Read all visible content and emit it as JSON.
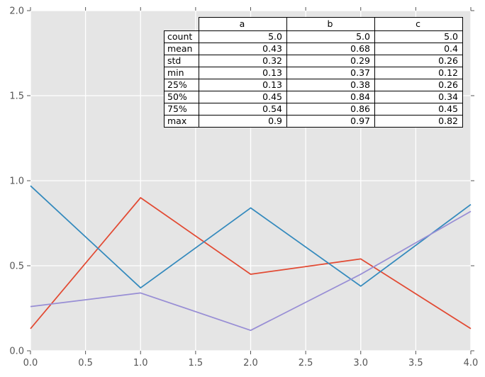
{
  "figure": {
    "bg_color": "#ffffff",
    "axes_bg_color": "#e5e5e5",
    "grid_color": "#ffffff",
    "tick_color": "#555555",
    "tick_label_color": "#555555",
    "table_border_color": "#000000",
    "table_bg_color": "#ffffff"
  },
  "chart_data": {
    "type": "line",
    "title": "",
    "xlabel": "",
    "ylabel": "",
    "x": [
      0,
      1,
      2,
      3,
      4
    ],
    "series": [
      {
        "name": "a",
        "color": "#e24a33",
        "values": [
          0.13,
          0.9,
          0.45,
          0.54,
          0.13
        ]
      },
      {
        "name": "b",
        "color": "#348abd",
        "values": [
          0.97,
          0.37,
          0.84,
          0.38,
          0.86
        ]
      },
      {
        "name": "c",
        "color": "#988ed5",
        "values": [
          0.26,
          0.34,
          0.12,
          0.45,
          0.82
        ]
      }
    ],
    "xlim": [
      0,
      4
    ],
    "ylim": [
      0,
      2
    ],
    "x_tick_labels": [
      "0.0",
      "0.5",
      "1.0",
      "1.5",
      "2.0",
      "2.5",
      "3.0",
      "3.5",
      "4.0"
    ],
    "y_tick_labels": [
      "0.0",
      "0.5",
      "1.0",
      "1.5",
      "2.0"
    ],
    "grid": true,
    "legend": "none"
  },
  "stats_table": {
    "columns": [
      "a",
      "b",
      "c"
    ],
    "rows": [
      {
        "label": "count",
        "values": [
          "5.0",
          "5.0",
          "5.0"
        ]
      },
      {
        "label": "mean",
        "values": [
          "0.43",
          "0.68",
          "0.4"
        ]
      },
      {
        "label": "std",
        "values": [
          "0.32",
          "0.29",
          "0.26"
        ]
      },
      {
        "label": "min",
        "values": [
          "0.13",
          "0.37",
          "0.12"
        ]
      },
      {
        "label": "25%",
        "values": [
          "0.13",
          "0.38",
          "0.26"
        ]
      },
      {
        "label": "50%",
        "values": [
          "0.45",
          "0.84",
          "0.34"
        ]
      },
      {
        "label": "75%",
        "values": [
          "0.54",
          "0.86",
          "0.45"
        ]
      },
      {
        "label": "max",
        "values": [
          "0.9",
          "0.97",
          "0.82"
        ]
      }
    ]
  }
}
